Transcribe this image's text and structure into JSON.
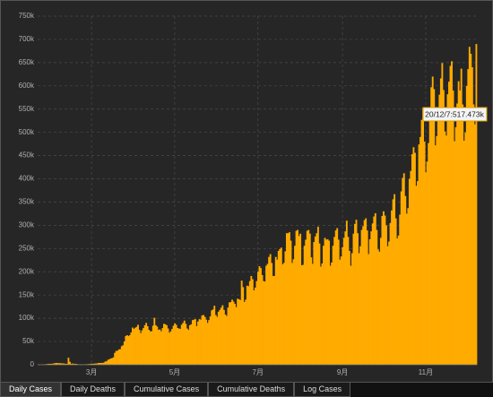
{
  "chart_data": {
    "type": "bar",
    "color": "#ffab00",
    "grid": true,
    "annotation": "20/12/7:517.473k",
    "ylim": [
      0,
      750000
    ],
    "yticks": [
      0,
      {
        "value": 50000,
        "label": "50k"
      },
      {
        "value": 100000,
        "label": "100k"
      },
      {
        "value": 150000,
        "label": "150k"
      },
      {
        "value": 200000,
        "label": "200k"
      },
      {
        "value": 250000,
        "label": "250k"
      },
      {
        "value": 300000,
        "label": "300k"
      },
      {
        "value": 350000,
        "label": "350k"
      },
      {
        "value": 400000,
        "label": "400k"
      },
      {
        "value": 450000,
        "label": "450k"
      },
      {
        "value": 500000,
        "label": "500k"
      },
      {
        "value": 550000,
        "label": "550k"
      },
      {
        "value": 600000,
        "label": "600k"
      },
      {
        "value": 650000,
        "label": "650k"
      },
      {
        "value": 700000,
        "label": "700k"
      },
      {
        "value": 750000,
        "label": "750k"
      }
    ],
    "categories": [
      null,
      null,
      null,
      null,
      null,
      null,
      null,
      null,
      null,
      null,
      null,
      null,
      null,
      null,
      null,
      null,
      null,
      null,
      null,
      null,
      null,
      null,
      null,
      null,
      null,
      null,
      null,
      null,
      null,
      null,
      null,
      null,
      null,
      null,
      null,
      null,
      null,
      null,
      null,
      "3月",
      null,
      null,
      null,
      null,
      null,
      null,
      null,
      null,
      null,
      null,
      null,
      null,
      null,
      null,
      null,
      null,
      null,
      null,
      null,
      null,
      null,
      null,
      null,
      null,
      null,
      null,
      null,
      null,
      null,
      null,
      null,
      null,
      null,
      null,
      null,
      null,
      null,
      null,
      null,
      null,
      null,
      null,
      null,
      null,
      null,
      null,
      null,
      null,
      null,
      null,
      null,
      null,
      null,
      null,
      null,
      null,
      null,
      null,
      null,
      null,
      "5月",
      null,
      null,
      null,
      null,
      null,
      null,
      null,
      null,
      null,
      null,
      null,
      null,
      null,
      null,
      null,
      null,
      null,
      null,
      null,
      null,
      null,
      null,
      null,
      null,
      null,
      null,
      null,
      null,
      null,
      null,
      null,
      null,
      null,
      null,
      null,
      null,
      null,
      null,
      null,
      null,
      null,
      null,
      null,
      null,
      null,
      null,
      null,
      null,
      null,
      null,
      null,
      null,
      null,
      null,
      null,
      null,
      null,
      null,
      null,
      null,
      "7月",
      null,
      null,
      null,
      null,
      null,
      null,
      null,
      null,
      null,
      null,
      null,
      null,
      null,
      null,
      null,
      null,
      null,
      null,
      null,
      null,
      null,
      null,
      null,
      null,
      null,
      null,
      null,
      null,
      null,
      null,
      null,
      null,
      null,
      null,
      null,
      null,
      null,
      null,
      null,
      null,
      null,
      null,
      null,
      null,
      null,
      null,
      null,
      null,
      null,
      null,
      null,
      null,
      null,
      null,
      null,
      null,
      null,
      null,
      null,
      null,
      null,
      "9月",
      null,
      null,
      null,
      null,
      null,
      null,
      null,
      null,
      null,
      null,
      null,
      null,
      null,
      null,
      null,
      null,
      null,
      null,
      null,
      null,
      null,
      null,
      null,
      null,
      null,
      null,
      null,
      null,
      null,
      null,
      null,
      null,
      null,
      null,
      null,
      null,
      null,
      null,
      null,
      null,
      null,
      null,
      null,
      null,
      null,
      null,
      null,
      null,
      null,
      null,
      null,
      null,
      null,
      null,
      null,
      null,
      null,
      null,
      null,
      null,
      "11月",
      null,
      null,
      null,
      null,
      null,
      null,
      null,
      null,
      null,
      null,
      null,
      null,
      null,
      null,
      null,
      null,
      null,
      null,
      null,
      null,
      null,
      null,
      null,
      null,
      null,
      null,
      null,
      null,
      null,
      null,
      null,
      null,
      null,
      null,
      null,
      null,
      null
    ],
    "values": [
      600,
      100,
      300,
      700,
      700,
      900,
      1400,
      1700,
      2000,
      2000,
      2100,
      2600,
      3200,
      3900,
      3700,
      3200,
      3500,
      2700,
      3000,
      2500,
      2000,
      2000,
      15100,
      6400,
      2100,
      2600,
      2000,
      1900,
      1800,
      600,
      1000,
      1000,
      1000,
      700,
      900,
      1100,
      1200,
      1500,
      1800,
      2200,
      2000,
      2500,
      2700,
      2800,
      3900,
      3800,
      4000,
      3800,
      4600,
      7000,
      7300,
      10600,
      11700,
      13500,
      14200,
      16000,
      25600,
      29700,
      30100,
      32900,
      33400,
      39900,
      41900,
      50200,
      61800,
      63600,
      61600,
      63600,
      69500,
      79900,
      77000,
      79500,
      81500,
      86000,
      75000,
      68000,
      74000,
      79000,
      85000,
      90000,
      83000,
      75000,
      72000,
      72000,
      84000,
      101000,
      85000,
      82000,
      75000,
      76000,
      72000,
      79000,
      88000,
      87000,
      85000,
      78000,
      69000,
      72000,
      77000,
      84000,
      89000,
      86000,
      79000,
      78000,
      77000,
      86000,
      90000,
      95000,
      88000,
      78000,
      75000,
      85000,
      87000,
      96000,
      97000,
      98000,
      83000,
      93000,
      98000,
      97000,
      106000,
      107000,
      103000,
      97000,
      90000,
      96000,
      104000,
      117000,
      119000,
      127000,
      107000,
      103000,
      114000,
      118000,
      123000,
      128000,
      118000,
      108000,
      105000,
      123000,
      134000,
      135000,
      140000,
      136000,
      131000,
      124000,
      142000,
      141000,
      139000,
      181000,
      167000,
      135000,
      140000,
      170000,
      169000,
      180000,
      191000,
      184000,
      160000,
      166000,
      180000,
      200000,
      212000,
      208000,
      193000,
      180000,
      179000,
      213000,
      217000,
      232000,
      238000,
      219000,
      191000,
      191000,
      232000,
      226000,
      245000,
      249000,
      252000,
      216000,
      219000,
      244000,
      283000,
      283000,
      285000,
      267000,
      219000,
      227000,
      256000,
      288000,
      290000,
      277000,
      282000,
      214000,
      215000,
      256000,
      269000,
      288000,
      290000,
      282000,
      231000,
      217000,
      264000,
      276000,
      283000,
      297000,
      261000,
      211000,
      218000,
      256000,
      273000,
      269000,
      270000,
      267000,
      213000,
      220000,
      256000,
      275000,
      289000,
      294000,
      269000,
      226000,
      233000,
      253000,
      273000,
      287000,
      310000,
      275000,
      245000,
      213000,
      240000,
      282000,
      303000,
      312000,
      283000,
      240000,
      255000,
      290000,
      298000,
      311000,
      315000,
      289000,
      238000,
      270000,
      287000,
      304000,
      319000,
      326000,
      290000,
      248000,
      243000,
      273000,
      320000,
      330000,
      321000,
      300000,
      255000,
      265000,
      305000,
      332000,
      356000,
      367000,
      315000,
      272000,
      278000,
      323000,
      373000,
      402000,
      412000,
      363000,
      325000,
      337000,
      400000,
      417000,
      453000,
      468000,
      456000,
      385000,
      395000,
      474000,
      490000,
      527000,
      552000,
      480000,
      414000,
      437000,
      477000,
      530000,
      597000,
      620000,
      593000,
      472000,
      492000,
      534000,
      581000,
      616000,
      649000,
      591000,
      502000,
      493000,
      582000,
      609000,
      643000,
      653000,
      590000,
      481000,
      511000,
      562000,
      610000,
      590000,
      637000,
      560000,
      482000,
      500000,
      600000,
      636000,
      684000,
      669000,
      640000,
      560000,
      517473,
      690000
    ]
  },
  "tabs": [
    "Daily Cases",
    "Daily Deaths",
    "Cumulative Cases",
    "Cumulative Deaths",
    "Log Cases"
  ]
}
